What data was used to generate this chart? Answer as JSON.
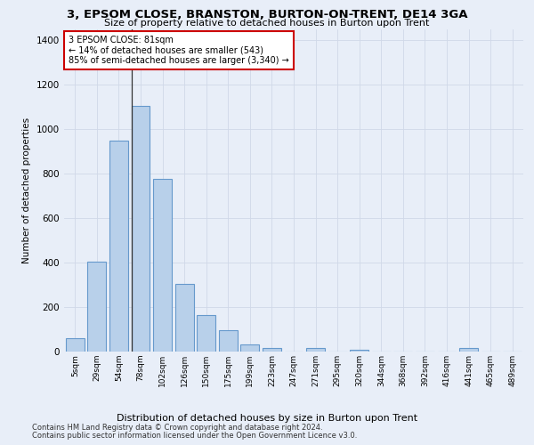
{
  "title": "3, EPSOM CLOSE, BRANSTON, BURTON-ON-TRENT, DE14 3GA",
  "subtitle": "Size of property relative to detached houses in Burton upon Trent",
  "xlabel": "Distribution of detached houses by size in Burton upon Trent",
  "ylabel": "Number of detached properties",
  "footer1": "Contains HM Land Registry data © Crown copyright and database right 2024.",
  "footer2": "Contains public sector information licensed under the Open Government Licence v3.0.",
  "bar_color": "#b8d0ea",
  "bar_edge_color": "#6699cc",
  "background_color": "#e8eef8",
  "annotation_text": "3 EPSOM CLOSE: 81sqm\n← 14% of detached houses are smaller (543)\n85% of semi-detached houses are larger (3,340) →",
  "annotation_box_color": "#ffffff",
  "annotation_box_edge": "#cc0000",
  "categories": [
    "5sqm",
    "29sqm",
    "54sqm",
    "78sqm",
    "102sqm",
    "126sqm",
    "150sqm",
    "175sqm",
    "199sqm",
    "223sqm",
    "247sqm",
    "271sqm",
    "295sqm",
    "320sqm",
    "344sqm",
    "368sqm",
    "392sqm",
    "416sqm",
    "441sqm",
    "465sqm",
    "489sqm"
  ],
  "values": [
    62,
    405,
    950,
    1105,
    775,
    305,
    165,
    97,
    32,
    16,
    0,
    18,
    0,
    10,
    0,
    0,
    0,
    0,
    15,
    0,
    0
  ],
  "n_bars": 21,
  "ylim": [
    0,
    1450
  ],
  "yticks": [
    0,
    200,
    400,
    600,
    800,
    1000,
    1200,
    1400
  ],
  "grid_color": "#d0d8e8",
  "figsize": [
    6.0,
    5.0
  ],
  "dpi": 100
}
